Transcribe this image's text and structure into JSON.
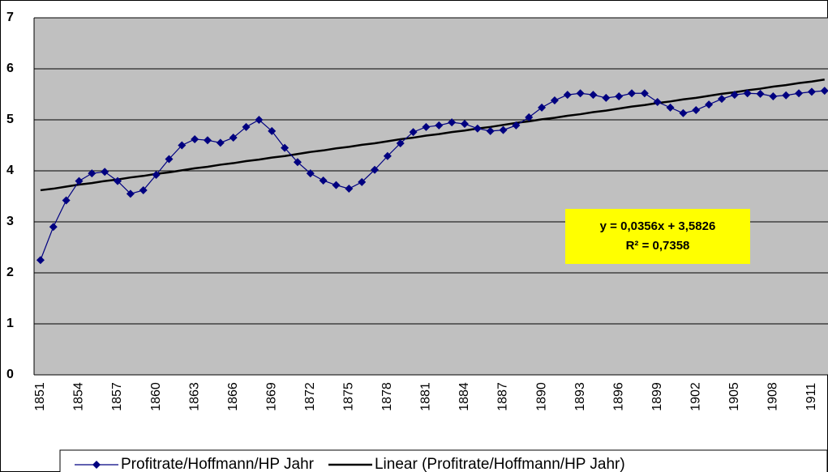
{
  "chart_data": {
    "type": "line",
    "categories": [
      "1851",
      null,
      null,
      "1854",
      null,
      null,
      "1857",
      null,
      null,
      "1860",
      null,
      null,
      "1863",
      null,
      null,
      "1866",
      null,
      null,
      "1869",
      null,
      null,
      "1872",
      null,
      null,
      "1875",
      null,
      null,
      "1878",
      null,
      null,
      "1881",
      null,
      null,
      "1884",
      null,
      null,
      "1887",
      null,
      null,
      "1890",
      null,
      null,
      "1893",
      null,
      null,
      "1896",
      null,
      null,
      "1899",
      null,
      null,
      "1902",
      null,
      null,
      "1905",
      null,
      null,
      "1908",
      null,
      null,
      "1911",
      null
    ],
    "series": [
      {
        "name": "Profitrate/Hoffmann/HP Jahr",
        "color": "#000080",
        "marker": "diamond",
        "values": [
          2.25,
          2.9,
          3.42,
          3.8,
          3.95,
          3.98,
          3.8,
          3.55,
          3.62,
          3.92,
          4.23,
          4.5,
          4.62,
          4.6,
          4.55,
          4.65,
          4.86,
          5.0,
          4.78,
          4.45,
          4.17,
          3.95,
          3.81,
          3.72,
          3.65,
          3.78,
          4.02,
          4.29,
          4.54,
          4.76,
          4.86,
          4.89,
          4.95,
          4.92,
          4.83,
          4.78,
          4.8,
          4.89,
          5.05,
          5.24,
          5.38,
          5.49,
          5.52,
          5.49,
          5.43,
          5.46,
          5.52,
          5.52,
          5.35,
          5.24,
          5.13,
          5.19,
          5.3,
          5.41,
          5.49,
          5.52,
          5.51,
          5.46,
          5.48,
          5.52,
          5.55,
          5.57
        ]
      },
      {
        "name": "Linear (Profitrate/Hoffmann/HP Jahr)",
        "color": "#000000",
        "values": [
          3.62,
          3.65,
          3.69,
          3.73,
          3.76,
          3.8,
          3.83,
          3.87,
          3.9,
          3.94,
          3.97,
          4.01,
          4.05,
          4.08,
          4.12,
          4.15,
          4.19,
          4.22,
          4.26,
          4.29,
          4.33,
          4.37,
          4.4,
          4.44,
          4.47,
          4.51,
          4.54,
          4.58,
          4.62,
          4.65,
          4.69,
          4.72,
          4.76,
          4.79,
          4.83,
          4.86,
          4.9,
          4.94,
          4.97,
          5.01,
          5.04,
          5.08,
          5.11,
          5.15,
          5.18,
          5.22,
          5.26,
          5.29,
          5.33,
          5.36,
          5.4,
          5.43,
          5.47,
          5.51,
          5.54,
          5.58,
          5.61,
          5.65,
          5.68,
          5.72,
          5.75,
          5.79
        ]
      }
    ],
    "annotations": [
      "y = 0,0356x + 3,5826",
      "R² = 0,7358"
    ],
    "ylim": [
      0,
      7
    ],
    "yticks": [
      0,
      1,
      2,
      3,
      4,
      5,
      6,
      7
    ],
    "grid": true,
    "legend": "bottom"
  }
}
